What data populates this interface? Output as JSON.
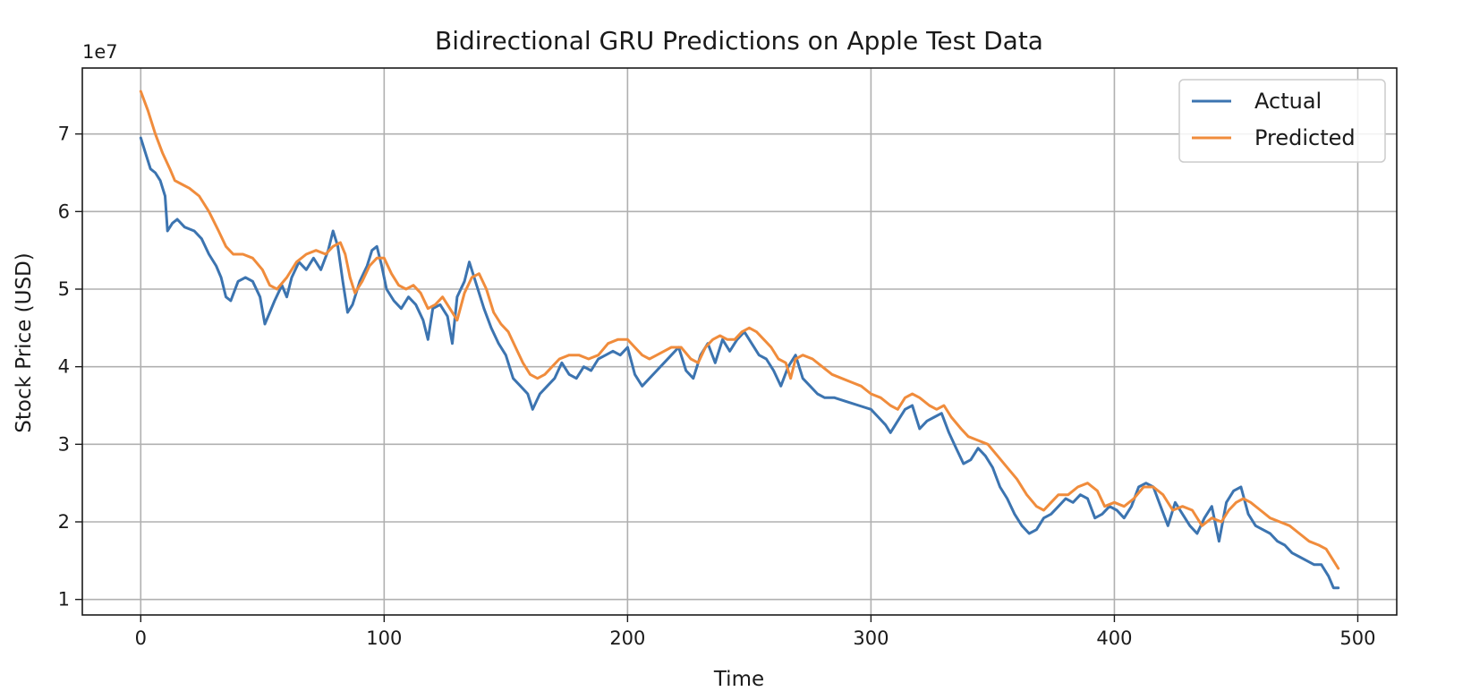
{
  "chart_data": {
    "type": "line",
    "title": "Bidirectional GRU Predictions on Apple Test Data",
    "xlabel": "Time",
    "ylabel": "Stock Price (USD)",
    "y_offset_label": "1e7",
    "xlim": [
      -24,
      516
    ],
    "ylim": [
      0.8,
      7.85
    ],
    "x_ticks": [
      0,
      100,
      200,
      300,
      400,
      500
    ],
    "x_tick_labels": [
      "0",
      "100",
      "200",
      "300",
      "400",
      "500"
    ],
    "y_ticks": [
      1,
      2,
      3,
      4,
      5,
      6,
      7
    ],
    "y_tick_labels": [
      "1",
      "2",
      "3",
      "4",
      "5",
      "6",
      "7"
    ],
    "grid": true,
    "legend": {
      "placement": "top-right",
      "entries": [
        "Actual",
        "Predicted"
      ]
    },
    "series": [
      {
        "name": "Actual",
        "color": "#3c74b0",
        "points": [
          [
            0,
            6.95
          ],
          [
            2,
            6.75
          ],
          [
            4,
            6.55
          ],
          [
            6,
            6.5
          ],
          [
            8,
            6.4
          ],
          [
            10,
            6.2
          ],
          [
            11,
            5.75
          ],
          [
            13,
            5.85
          ],
          [
            15,
            5.9
          ],
          [
            18,
            5.8
          ],
          [
            22,
            5.75
          ],
          [
            25,
            5.65
          ],
          [
            28,
            5.45
          ],
          [
            31,
            5.3
          ],
          [
            33,
            5.15
          ],
          [
            35,
            4.9
          ],
          [
            37,
            4.85
          ],
          [
            40,
            5.1
          ],
          [
            43,
            5.15
          ],
          [
            46,
            5.1
          ],
          [
            49,
            4.9
          ],
          [
            51,
            4.55
          ],
          [
            53,
            4.7
          ],
          [
            55,
            4.85
          ],
          [
            58,
            5.05
          ],
          [
            60,
            4.9
          ],
          [
            62,
            5.15
          ],
          [
            65,
            5.35
          ],
          [
            68,
            5.25
          ],
          [
            71,
            5.4
          ],
          [
            74,
            5.25
          ],
          [
            77,
            5.5
          ],
          [
            79,
            5.75
          ],
          [
            81,
            5.55
          ],
          [
            83,
            5.1
          ],
          [
            85,
            4.7
          ],
          [
            87,
            4.8
          ],
          [
            90,
            5.1
          ],
          [
            93,
            5.3
          ],
          [
            95,
            5.5
          ],
          [
            97,
            5.55
          ],
          [
            99,
            5.3
          ],
          [
            101,
            5.0
          ],
          [
            104,
            4.85
          ],
          [
            107,
            4.75
          ],
          [
            110,
            4.9
          ],
          [
            113,
            4.8
          ],
          [
            116,
            4.6
          ],
          [
            118,
            4.35
          ],
          [
            120,
            4.75
          ],
          [
            123,
            4.8
          ],
          [
            126,
            4.65
          ],
          [
            128,
            4.3
          ],
          [
            130,
            4.9
          ],
          [
            133,
            5.1
          ],
          [
            135,
            5.35
          ],
          [
            138,
            5.05
          ],
          [
            141,
            4.75
          ],
          [
            144,
            4.5
          ],
          [
            147,
            4.3
          ],
          [
            150,
            4.15
          ],
          [
            153,
            3.85
          ],
          [
            156,
            3.75
          ],
          [
            159,
            3.65
          ],
          [
            161,
            3.45
          ],
          [
            164,
            3.65
          ],
          [
            167,
            3.75
          ],
          [
            170,
            3.85
          ],
          [
            173,
            4.05
          ],
          [
            176,
            3.9
          ],
          [
            179,
            3.85
          ],
          [
            182,
            4.0
          ],
          [
            185,
            3.95
          ],
          [
            188,
            4.1
          ],
          [
            191,
            4.15
          ],
          [
            194,
            4.2
          ],
          [
            197,
            4.15
          ],
          [
            200,
            4.25
          ],
          [
            203,
            3.9
          ],
          [
            206,
            3.75
          ],
          [
            209,
            3.85
          ],
          [
            212,
            3.95
          ],
          [
            215,
            4.05
          ],
          [
            218,
            4.15
          ],
          [
            221,
            4.25
          ],
          [
            224,
            3.95
          ],
          [
            227,
            3.85
          ],
          [
            230,
            4.15
          ],
          [
            233,
            4.3
          ],
          [
            236,
            4.05
          ],
          [
            239,
            4.35
          ],
          [
            242,
            4.2
          ],
          [
            245,
            4.35
          ],
          [
            248,
            4.45
          ],
          [
            251,
            4.3
          ],
          [
            254,
            4.15
          ],
          [
            257,
            4.1
          ],
          [
            260,
            3.95
          ],
          [
            263,
            3.75
          ],
          [
            266,
            4.0
          ],
          [
            269,
            4.15
          ],
          [
            272,
            3.85
          ],
          [
            275,
            3.75
          ],
          [
            278,
            3.65
          ],
          [
            281,
            3.6
          ],
          [
            285,
            3.6
          ],
          [
            290,
            3.55
          ],
          [
            295,
            3.5
          ],
          [
            300,
            3.45
          ],
          [
            303,
            3.35
          ],
          [
            306,
            3.25
          ],
          [
            308,
            3.15
          ],
          [
            311,
            3.3
          ],
          [
            314,
            3.45
          ],
          [
            317,
            3.5
          ],
          [
            320,
            3.2
          ],
          [
            323,
            3.3
          ],
          [
            326,
            3.35
          ],
          [
            329,
            3.4
          ],
          [
            332,
            3.15
          ],
          [
            335,
            2.95
          ],
          [
            338,
            2.75
          ],
          [
            341,
            2.8
          ],
          [
            344,
            2.95
          ],
          [
            347,
            2.85
          ],
          [
            350,
            2.7
          ],
          [
            353,
            2.45
          ],
          [
            356,
            2.3
          ],
          [
            359,
            2.1
          ],
          [
            362,
            1.95
          ],
          [
            365,
            1.85
          ],
          [
            368,
            1.9
          ],
          [
            371,
            2.05
          ],
          [
            374,
            2.1
          ],
          [
            377,
            2.2
          ],
          [
            380,
            2.3
          ],
          [
            383,
            2.25
          ],
          [
            386,
            2.35
          ],
          [
            389,
            2.3
          ],
          [
            392,
            2.05
          ],
          [
            395,
            2.1
          ],
          [
            398,
            2.2
          ],
          [
            401,
            2.15
          ],
          [
            404,
            2.05
          ],
          [
            407,
            2.2
          ],
          [
            410,
            2.45
          ],
          [
            413,
            2.5
          ],
          [
            416,
            2.45
          ],
          [
            419,
            2.2
          ],
          [
            422,
            1.95
          ],
          [
            425,
            2.25
          ],
          [
            428,
            2.1
          ],
          [
            431,
            1.95
          ],
          [
            434,
            1.85
          ],
          [
            437,
            2.05
          ],
          [
            440,
            2.2
          ],
          [
            443,
            1.75
          ],
          [
            446,
            2.25
          ],
          [
            449,
            2.4
          ],
          [
            452,
            2.45
          ],
          [
            455,
            2.1
          ],
          [
            458,
            1.95
          ],
          [
            461,
            1.9
          ],
          [
            464,
            1.85
          ],
          [
            467,
            1.75
          ],
          [
            470,
            1.7
          ],
          [
            473,
            1.6
          ],
          [
            476,
            1.55
          ],
          [
            479,
            1.5
          ],
          [
            482,
            1.45
          ],
          [
            485,
            1.45
          ],
          [
            488,
            1.3
          ],
          [
            490,
            1.15
          ],
          [
            492,
            1.15
          ]
        ]
      },
      {
        "name": "Predicted",
        "color": "#f08c3c",
        "points": [
          [
            0,
            7.55
          ],
          [
            3,
            7.3
          ],
          [
            6,
            7.0
          ],
          [
            9,
            6.75
          ],
          [
            12,
            6.55
          ],
          [
            14,
            6.4
          ],
          [
            17,
            6.35
          ],
          [
            20,
            6.3
          ],
          [
            24,
            6.2
          ],
          [
            28,
            6.0
          ],
          [
            32,
            5.75
          ],
          [
            35,
            5.55
          ],
          [
            38,
            5.45
          ],
          [
            42,
            5.45
          ],
          [
            46,
            5.4
          ],
          [
            50,
            5.25
          ],
          [
            53,
            5.05
          ],
          [
            56,
            5.0
          ],
          [
            60,
            5.15
          ],
          [
            64,
            5.35
          ],
          [
            68,
            5.45
          ],
          [
            72,
            5.5
          ],
          [
            76,
            5.45
          ],
          [
            79,
            5.55
          ],
          [
            82,
            5.6
          ],
          [
            84,
            5.45
          ],
          [
            86,
            5.15
          ],
          [
            88,
            4.95
          ],
          [
            91,
            5.1
          ],
          [
            94,
            5.3
          ],
          [
            97,
            5.4
          ],
          [
            100,
            5.4
          ],
          [
            103,
            5.2
          ],
          [
            106,
            5.05
          ],
          [
            109,
            5.0
          ],
          [
            112,
            5.05
          ],
          [
            115,
            4.95
          ],
          [
            118,
            4.75
          ],
          [
            121,
            4.8
          ],
          [
            124,
            4.9
          ],
          [
            127,
            4.75
          ],
          [
            130,
            4.6
          ],
          [
            133,
            4.95
          ],
          [
            136,
            5.15
          ],
          [
            139,
            5.2
          ],
          [
            142,
            5.0
          ],
          [
            145,
            4.7
          ],
          [
            148,
            4.55
          ],
          [
            151,
            4.45
          ],
          [
            154,
            4.25
          ],
          [
            157,
            4.05
          ],
          [
            160,
            3.9
          ],
          [
            163,
            3.85
          ],
          [
            166,
            3.9
          ],
          [
            169,
            4.0
          ],
          [
            172,
            4.1
          ],
          [
            176,
            4.15
          ],
          [
            180,
            4.15
          ],
          [
            184,
            4.1
          ],
          [
            188,
            4.15
          ],
          [
            192,
            4.3
          ],
          [
            196,
            4.35
          ],
          [
            200,
            4.35
          ],
          [
            203,
            4.25
          ],
          [
            206,
            4.15
          ],
          [
            209,
            4.1
          ],
          [
            212,
            4.15
          ],
          [
            215,
            4.2
          ],
          [
            218,
            4.25
          ],
          [
            222,
            4.25
          ],
          [
            226,
            4.1
          ],
          [
            229,
            4.05
          ],
          [
            232,
            4.25
          ],
          [
            235,
            4.35
          ],
          [
            238,
            4.4
          ],
          [
            241,
            4.35
          ],
          [
            244,
            4.35
          ],
          [
            247,
            4.45
          ],
          [
            250,
            4.5
          ],
          [
            253,
            4.45
          ],
          [
            256,
            4.35
          ],
          [
            259,
            4.25
          ],
          [
            262,
            4.1
          ],
          [
            265,
            4.05
          ],
          [
            267,
            3.85
          ],
          [
            269,
            4.1
          ],
          [
            272,
            4.15
          ],
          [
            276,
            4.1
          ],
          [
            280,
            4.0
          ],
          [
            284,
            3.9
          ],
          [
            288,
            3.85
          ],
          [
            292,
            3.8
          ],
          [
            296,
            3.75
          ],
          [
            300,
            3.65
          ],
          [
            304,
            3.6
          ],
          [
            308,
            3.5
          ],
          [
            311,
            3.45
          ],
          [
            314,
            3.6
          ],
          [
            317,
            3.65
          ],
          [
            320,
            3.6
          ],
          [
            324,
            3.5
          ],
          [
            327,
            3.45
          ],
          [
            330,
            3.5
          ],
          [
            333,
            3.35
          ],
          [
            337,
            3.2
          ],
          [
            340,
            3.1
          ],
          [
            344,
            3.05
          ],
          [
            348,
            3.0
          ],
          [
            352,
            2.85
          ],
          [
            356,
            2.7
          ],
          [
            360,
            2.55
          ],
          [
            364,
            2.35
          ],
          [
            368,
            2.2
          ],
          [
            371,
            2.15
          ],
          [
            374,
            2.25
          ],
          [
            377,
            2.35
          ],
          [
            381,
            2.35
          ],
          [
            385,
            2.45
          ],
          [
            389,
            2.5
          ],
          [
            393,
            2.4
          ],
          [
            396,
            2.2
          ],
          [
            400,
            2.25
          ],
          [
            404,
            2.2
          ],
          [
            408,
            2.3
          ],
          [
            412,
            2.45
          ],
          [
            416,
            2.45
          ],
          [
            420,
            2.35
          ],
          [
            424,
            2.15
          ],
          [
            428,
            2.2
          ],
          [
            432,
            2.15
          ],
          [
            436,
            1.95
          ],
          [
            440,
            2.05
          ],
          [
            444,
            2.0
          ],
          [
            447,
            2.15
          ],
          [
            450,
            2.25
          ],
          [
            453,
            2.3
          ],
          [
            456,
            2.25
          ],
          [
            460,
            2.15
          ],
          [
            464,
            2.05
          ],
          [
            468,
            2.0
          ],
          [
            472,
            1.95
          ],
          [
            476,
            1.85
          ],
          [
            480,
            1.75
          ],
          [
            484,
            1.7
          ],
          [
            487,
            1.65
          ],
          [
            490,
            1.5
          ],
          [
            492,
            1.4
          ]
        ]
      }
    ]
  }
}
